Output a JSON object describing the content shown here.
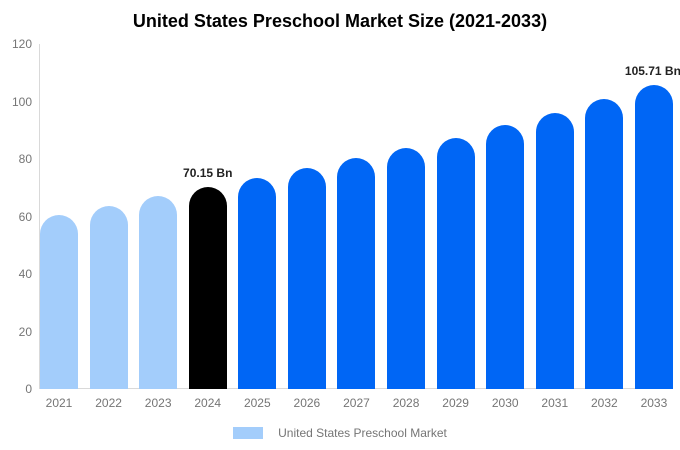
{
  "chart_data": {
    "type": "bar",
    "title": "United States Preschool Market Size (2021-2033)",
    "categories": [
      "2021",
      "2022",
      "2023",
      "2024",
      "2025",
      "2026",
      "2027",
      "2028",
      "2029",
      "2030",
      "2031",
      "2032",
      "2033"
    ],
    "values": [
      60.7,
      63.6,
      67.0,
      70.15,
      73.4,
      76.9,
      80.3,
      83.8,
      87.3,
      91.8,
      96.0,
      100.9,
      105.71
    ],
    "unit": "Bn",
    "point_labels": [
      "",
      "",
      "",
      "70.15 Bn",
      "",
      "",
      "",
      "",
      "",
      "",
      "",
      "",
      "105.71 Bn"
    ],
    "bar_colors": [
      "light",
      "light",
      "light",
      "black",
      "blue",
      "blue",
      "blue",
      "blue",
      "blue",
      "blue",
      "blue",
      "blue",
      "blue"
    ],
    "palette": {
      "light": "#a3cdfb",
      "black": "#000000",
      "blue": "#0066f5"
    },
    "xlabel": "",
    "ylabel": "",
    "ylim": [
      0,
      120
    ],
    "yticks": [
      0,
      20,
      40,
      60,
      80,
      100,
      120
    ],
    "grid": "off",
    "legend_position": "bottom"
  },
  "legend": {
    "label": "United States Preschool Market",
    "swatch_color": "#a3cdfb"
  },
  "colors": {
    "background": "#ffffff",
    "axis_line": "#d9d9d9",
    "tick_label": "#757575",
    "data_label": "#222222",
    "title": "#000000"
  }
}
